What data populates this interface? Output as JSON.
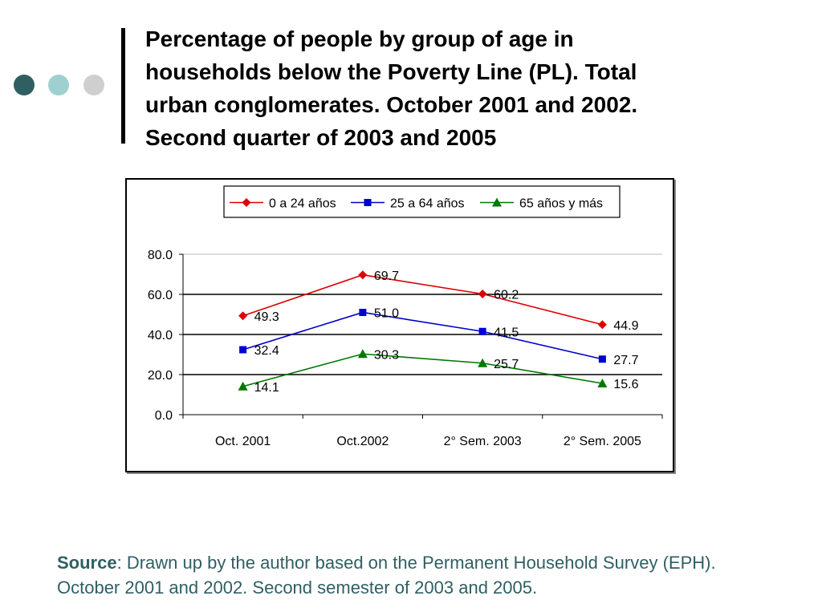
{
  "header": {
    "title_lines": [
      "Percentage of people by group of age in",
      "households below the Poverty Line (PL). Total",
      "urban conglomerates. October 2001 and 2002.",
      "Second quarter of 2003 and 2005"
    ]
  },
  "colors": {
    "dot_dark": "#2f5f63",
    "dot_light": "#9fd0d0",
    "dot_gray": "#cfcfcf",
    "source_text": "#2f5f63"
  },
  "chart_data": {
    "type": "line",
    "categories": [
      "Oct. 2001",
      "Oct.2002",
      "2° Sem. 2003",
      "2° Sem. 2005"
    ],
    "series": [
      {
        "name": "0 a 24 años",
        "color": "#dd0000",
        "marker": "diamond",
        "values": [
          49.3,
          69.7,
          60.2,
          44.9
        ]
      },
      {
        "name": "25 a 64 años",
        "color": "#0000cc",
        "marker": "square",
        "values": [
          32.4,
          51.0,
          41.5,
          27.7
        ]
      },
      {
        "name": "65 años y más",
        "color": "#007700",
        "marker": "triangle",
        "values": [
          14.1,
          30.3,
          25.7,
          15.6
        ]
      }
    ],
    "ylim": [
      0,
      80
    ],
    "yticks": [
      "0.0",
      "20.0",
      "40.0",
      "60.0",
      "80.0"
    ],
    "grid": true,
    "legend": "top-center",
    "data_labels": true
  },
  "footer": {
    "source_label": "Source",
    "source_text": ": Drawn up by the author based on the Permanent Household Survey (EPH). October 2001 and 2002. Second semester of 2003 and 2005."
  }
}
